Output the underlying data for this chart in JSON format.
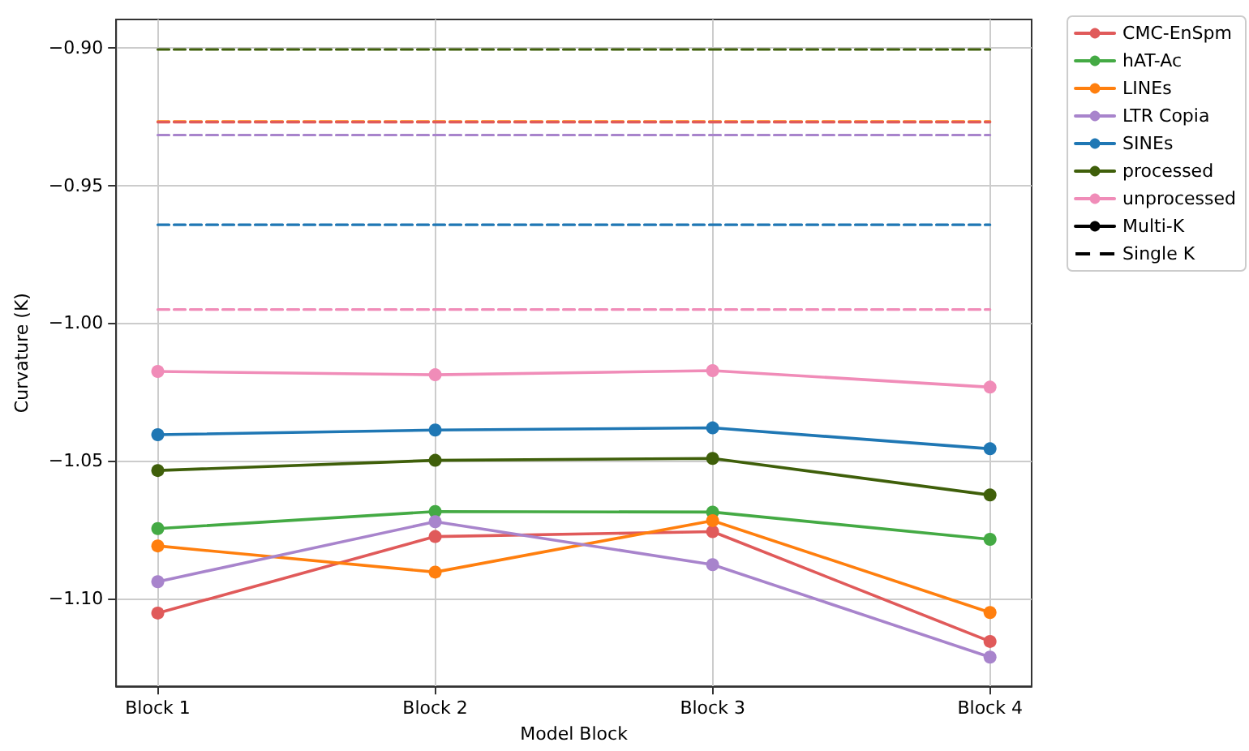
{
  "chart_data": {
    "type": "line",
    "xlabel": "Model Block",
    "ylabel": "Curvature (K)",
    "categories": [
      "Block 1",
      "Block 2",
      "Block 3",
      "Block 4"
    ],
    "ylim": [
      -1.132,
      -0.8897
    ],
    "yticks": [
      {
        "value": -0.9,
        "label": "−0.90"
      },
      {
        "value": -0.95,
        "label": "−0.95"
      },
      {
        "value": -1.0,
        "label": "−1.00"
      },
      {
        "value": -1.05,
        "label": "−1.05"
      },
      {
        "value": -1.1,
        "label": "−1.10"
      }
    ],
    "grid": true,
    "legend": "top right",
    "series": [
      {
        "name": "CMC-EnSpm",
        "color": "#e05a5a",
        "marker": "circle",
        "line_style": "solid",
        "values": [
          -1.1054,
          -1.0776,
          -1.0758,
          -1.1157
        ]
      },
      {
        "name": "hAT-Ac",
        "color": "#44aa44",
        "marker": "circle",
        "line_style": "solid",
        "values": [
          -1.0747,
          -1.0685,
          -1.0687,
          -1.0786
        ]
      },
      {
        "name": "LINEs",
        "color": "#ff7f0e",
        "marker": "circle",
        "line_style": "solid",
        "values": [
          -1.081,
          -1.0905,
          -1.0718,
          -1.1052
        ]
      },
      {
        "name": "LTR Copia",
        "color": "#a884cc",
        "marker": "circle",
        "line_style": "solid",
        "values": [
          -1.094,
          -1.0722,
          -1.0878,
          -1.1214
        ]
      },
      {
        "name": "SINEs",
        "color": "#1f77b4",
        "marker": "circle",
        "line_style": "solid",
        "values": [
          -1.0406,
          -1.0389,
          -1.0381,
          -1.0457
        ]
      },
      {
        "name": "processed",
        "color": "#3f5f0a",
        "marker": "circle",
        "line_style": "solid",
        "values": [
          -1.0536,
          -1.0499,
          -1.0492,
          -1.0625
        ]
      },
      {
        "name": "unprocessed",
        "color": "#f08cb8",
        "marker": "circle",
        "line_style": "solid",
        "values": [
          -1.0176,
          -1.0188,
          -1.0173,
          -1.0233
        ]
      },
      {
        "name": "Multi-K",
        "color": "#000000",
        "marker": "circle",
        "line_style": "solid",
        "values": [
          null,
          null,
          null,
          null
        ]
      },
      {
        "name": "Single K",
        "color": "#000000",
        "marker": "none",
        "line_style": "dashed",
        "values": [
          null,
          null,
          null,
          null
        ]
      },
      {
        "color": "#3f5f0a",
        "marker": "none",
        "line_style": "dashed",
        "values": [
          -0.9006,
          -0.9006,
          -0.9006,
          -0.9006
        ]
      },
      {
        "color": "#ff7f0e",
        "marker": "none",
        "line_style": "dashed",
        "values": [
          -0.9268,
          -0.9268,
          -0.9268,
          -0.9268
        ]
      },
      {
        "color": "#e05a5a",
        "marker": "none",
        "line_style": "dashed",
        "values": [
          -0.927,
          -0.927,
          -0.927,
          -0.927
        ]
      },
      {
        "color": "#a884cc",
        "marker": "none",
        "line_style": "dashed",
        "values": [
          -0.9317,
          -0.9317,
          -0.9317,
          -0.9317
        ]
      },
      {
        "color": "#1f77b4",
        "marker": "none",
        "line_style": "dashed",
        "values": [
          -0.9643,
          -0.9643,
          -0.9643,
          -0.9643
        ]
      },
      {
        "color": "#f08cb8",
        "marker": "none",
        "line_style": "dashed",
        "values": [
          -0.9951,
          -0.9951,
          -0.9951,
          -0.9951
        ]
      }
    ]
  }
}
